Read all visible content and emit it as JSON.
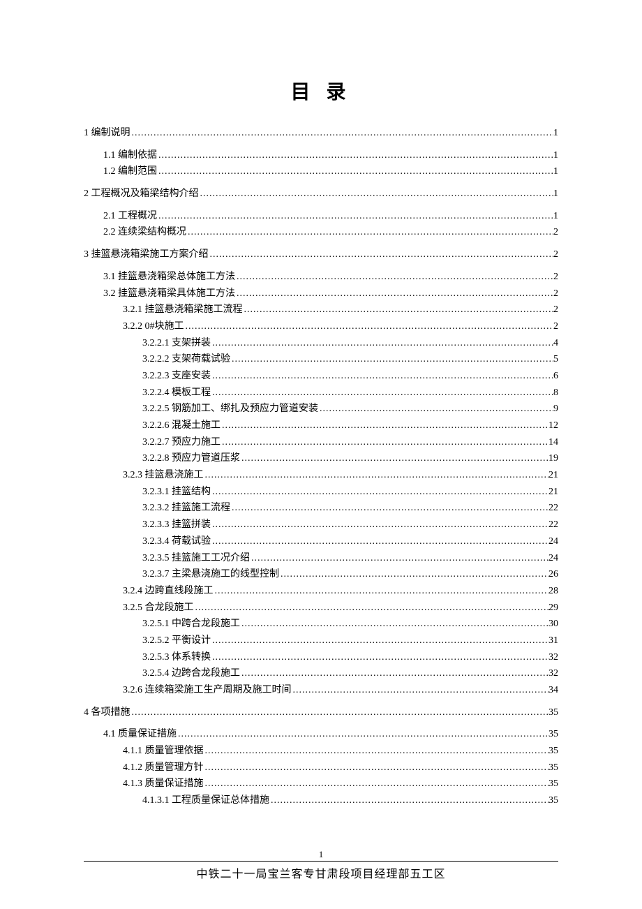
{
  "title": "目 录",
  "page_number": "1",
  "footer": "中铁二十一局宝兰客专甘肃段项目经理部五工区",
  "entries": [
    {
      "label": "1 编制说明",
      "page": "1",
      "indent": 0,
      "gap": false
    },
    {
      "label": "1.1 编制依据",
      "page": "1",
      "indent": 1,
      "gap": true
    },
    {
      "label": "1.2 编制范围",
      "page": "1",
      "indent": 1,
      "gap": false
    },
    {
      "label": "2 工程概况及箱梁结构介绍",
      "page": "1",
      "indent": 0,
      "gap": true
    },
    {
      "label": "2.1 工程概况",
      "page": "1",
      "indent": 1,
      "gap": true
    },
    {
      "label": "2.2 连续梁结构概况",
      "page": "2",
      "indent": 1,
      "gap": false
    },
    {
      "label": "3 挂篮悬浇箱梁施工方案介绍",
      "page": "2",
      "indent": 0,
      "gap": true
    },
    {
      "label": "3.1 挂篮悬浇箱梁总体施工方法",
      "page": "2",
      "indent": 1,
      "gap": true
    },
    {
      "label": "3.2 挂篮悬浇箱梁具体施工方法",
      "page": "2",
      "indent": 1,
      "gap": false
    },
    {
      "label": "3.2.1 挂篮悬浇箱梁施工流程",
      "page": "2",
      "indent": 2,
      "gap": false
    },
    {
      "label": "3.2.2 0#块施工",
      "page": "2",
      "indent": 2,
      "gap": false
    },
    {
      "label": "3.2.2.1 支架拼装",
      "page": "4",
      "indent": 3,
      "gap": false
    },
    {
      "label": "3.2.2.2 支架荷载试验",
      "page": "5",
      "indent": 3,
      "gap": false
    },
    {
      "label": "3.2.2.3 支座安装",
      "page": "6",
      "indent": 3,
      "gap": false
    },
    {
      "label": "3.2.2.4 模板工程",
      "page": "8",
      "indent": 3,
      "gap": false
    },
    {
      "label": "3.2.2.5 钢筋加工、绑扎及预应力管道安装",
      "page": "9",
      "indent": 3,
      "gap": false
    },
    {
      "label": "3.2.2.6 混凝土施工",
      "page": "12",
      "indent": 3,
      "gap": false
    },
    {
      "label": "3.2.2.7 预应力施工",
      "page": "14",
      "indent": 3,
      "gap": false
    },
    {
      "label": "3.2.2.8 预应力管道压浆",
      "page": "19",
      "indent": 3,
      "gap": false
    },
    {
      "label": "3.2.3 挂篮悬浇施工",
      "page": "21",
      "indent": 2,
      "gap": false
    },
    {
      "label": "3.2.3.1 挂篮结构",
      "page": "21",
      "indent": 3,
      "gap": false
    },
    {
      "label": "3.2.3.2 挂篮施工流程",
      "page": "22",
      "indent": 3,
      "gap": false
    },
    {
      "label": "3.2.3.3 挂篮拼装",
      "page": "22",
      "indent": 3,
      "gap": false
    },
    {
      "label": "3.2.3.4 荷载试验",
      "page": "24",
      "indent": 3,
      "gap": false
    },
    {
      "label": "3.2.3.5 挂篮施工工况介绍",
      "page": "24",
      "indent": 3,
      "gap": false
    },
    {
      "label": "3.2.3.7 主梁悬浇施工的线型控制",
      "page": "26",
      "indent": 3,
      "gap": false
    },
    {
      "label": "3.2.4 边跨直线段施工",
      "page": "28",
      "indent": 2,
      "gap": false
    },
    {
      "label": "3.2.5 合龙段施工",
      "page": "29",
      "indent": 2,
      "gap": false
    },
    {
      "label": "3.2.5.1 中跨合龙段施工",
      "page": "30",
      "indent": 3,
      "gap": false
    },
    {
      "label": "3.2.5.2 平衡设计",
      "page": "31",
      "indent": 3,
      "gap": false
    },
    {
      "label": "3.2.5.3 体系转换",
      "page": "32",
      "indent": 3,
      "gap": false
    },
    {
      "label": "3.2.5.4 边跨合龙段施工",
      "page": "32",
      "indent": 3,
      "gap": false
    },
    {
      "label": "3.2.6 连续箱梁施工生产周期及施工时间",
      "page": "34",
      "indent": 2,
      "gap": false
    },
    {
      "label": "4 各项措施",
      "page": "35",
      "indent": 0,
      "gap": true
    },
    {
      "label": "4.1 质量保证措施",
      "page": "35",
      "indent": 1,
      "gap": true
    },
    {
      "label": "4.1.1 质量管理依据",
      "page": "35",
      "indent": 2,
      "gap": false
    },
    {
      "label": "4.1.2 质量管理方针",
      "page": "35",
      "indent": 2,
      "gap": false
    },
    {
      "label": "4.1.3 质量保证措施",
      "page": "35",
      "indent": 2,
      "gap": false
    },
    {
      "label": "4.1.3.1 工程质量保证总体措施",
      "page": "35",
      "indent": 3,
      "gap": false
    }
  ]
}
